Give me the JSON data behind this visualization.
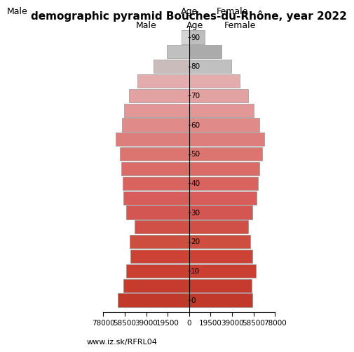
{
  "title": "demographic pyramid Bouches-du-Rhône, year 2022",
  "label_male": "Male",
  "label_female": "Female",
  "label_age": "Age",
  "url": "www.iz.sk/RFRL04",
  "xlim": 78000,
  "ages": [
    0,
    5,
    10,
    15,
    20,
    25,
    30,
    35,
    40,
    45,
    50,
    55,
    60,
    65,
    70,
    75,
    80,
    85,
    90
  ],
  "male": [
    65000,
    59500,
    57500,
    53500,
    54000,
    49500,
    57000,
    59500,
    60500,
    61500,
    63000,
    66500,
    61000,
    59000,
    54500,
    47000,
    32500,
    20000,
    7000
  ],
  "female": [
    57500,
    57000,
    60500,
    57500,
    55500,
    53500,
    57500,
    61000,
    62500,
    63500,
    66500,
    68500,
    63500,
    58500,
    53500,
    46000,
    38500,
    29500,
    14000
  ],
  "colors_male": [
    "#c0392b",
    "#c53c2e",
    "#ca3f31",
    "#cc4235",
    "#cd4d3e",
    "#d05048",
    "#d45653",
    "#d65d59",
    "#d8635f",
    "#da6b67",
    "#dc7470",
    "#de7e7c",
    "#e08a89",
    "#e29696",
    "#e3a2a2",
    "#e4adad",
    "#cbbcbc",
    "#c0c0c0",
    "#d5d5d5"
  ],
  "colors_female": [
    "#c0392b",
    "#c53c2e",
    "#ca3f31",
    "#cc4235",
    "#cd4d3e",
    "#d05048",
    "#d45653",
    "#d65d59",
    "#d8635f",
    "#da6b67",
    "#dc7470",
    "#de7e7c",
    "#e08a89",
    "#e29696",
    "#e3a2a2",
    "#e4adad",
    "#c0c0c0",
    "#ababab",
    "#bdbdbd"
  ],
  "yticks": [
    0,
    10,
    20,
    30,
    40,
    50,
    60,
    70,
    80,
    90
  ],
  "xticks": [
    -78000,
    -58500,
    -39000,
    -19500,
    0,
    19500,
    39000,
    58500,
    78000
  ],
  "xtick_labels": [
    "78000",
    "58500",
    "39000",
    "19500",
    "0",
    "19500",
    "39000",
    "58500",
    "78000"
  ],
  "bar_height": 4.6
}
